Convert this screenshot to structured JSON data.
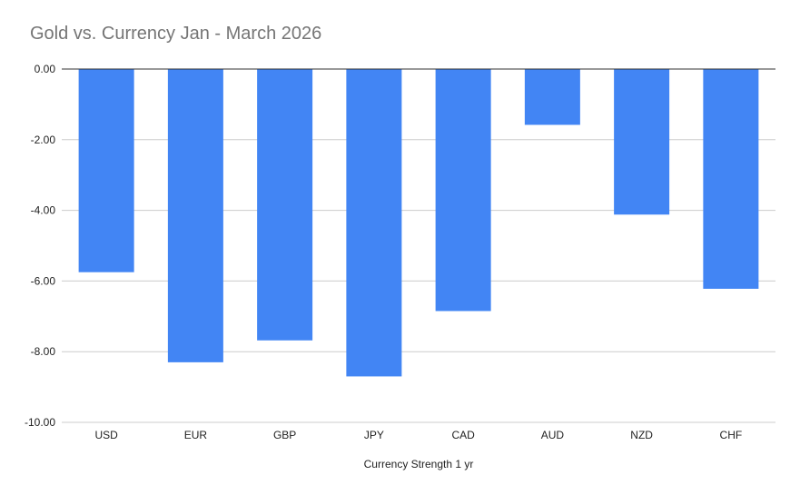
{
  "chart_data": {
    "type": "bar",
    "title": "Gold vs. Currency Jan - March 2026",
    "xlabel": "Currency Strength 1 yr",
    "ylabel": "",
    "categories": [
      "USD",
      "EUR",
      "GBP",
      "JPY",
      "CAD",
      "AUD",
      "NZD",
      "CHF"
    ],
    "values": [
      -5.75,
      -8.3,
      -7.68,
      -8.7,
      -6.85,
      -1.58,
      -4.12,
      -6.22
    ],
    "ylim": [
      -10,
      0
    ],
    "yticks": [
      "0.00",
      "-2.00",
      "-4.00",
      "-6.00",
      "-8.00",
      "-10.00"
    ],
    "ytick_values": [
      0,
      -2,
      -4,
      -6,
      -8,
      -10
    ],
    "grid": true,
    "legend": "none",
    "bar_color": "#4285f4"
  }
}
